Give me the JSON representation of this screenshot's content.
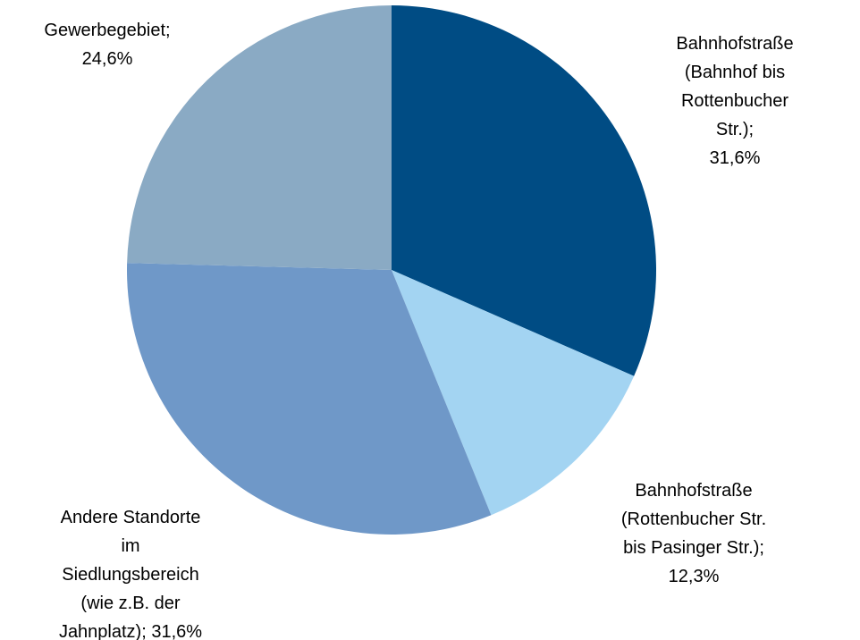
{
  "chart_data": {
    "type": "pie",
    "categories": [
      "Bahnhofstraße\n(Bahnhof bis\nRottenbucher Str.)",
      "Bahnhofstraße\n(Rottenbucher Str.\nbis Pasinger Str.)",
      "Andere Standorte\nim\nSiedlungsbereich\n(wie z.B. der\nJahnplatz)",
      "Gewerbegebiet"
    ],
    "values": [
      31.6,
      12.3,
      31.6,
      24.6
    ],
    "value_labels": [
      "31,6%",
      "12,3%",
      "31,6%",
      "24,6%"
    ],
    "label_separator": ";",
    "colors": [
      "#004c84",
      "#a3d4f2",
      "#6f98c8",
      "#8aaac4"
    ]
  }
}
